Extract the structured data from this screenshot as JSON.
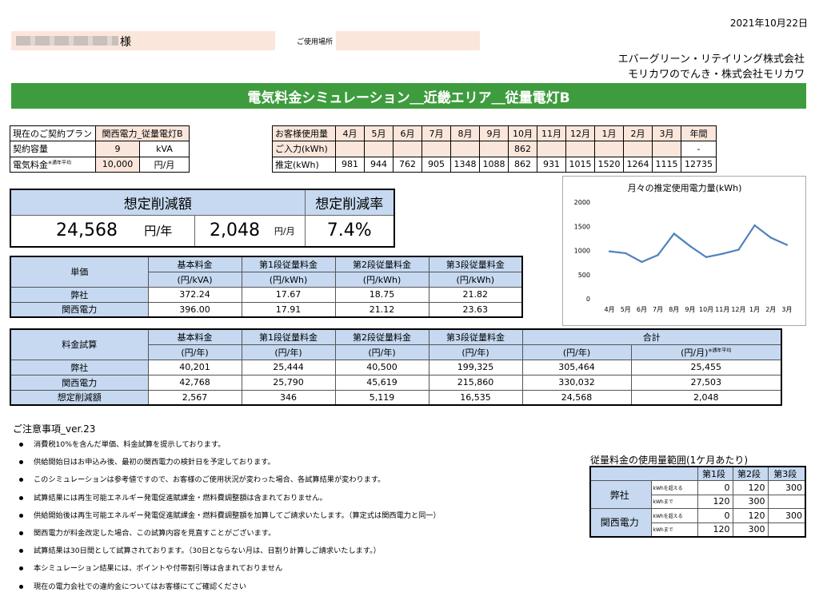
{
  "date": "2021年10月22日",
  "customer": {
    "suffix": "様",
    "place_label": "ご使用場所"
  },
  "company": {
    "line1": "エバーグリーン・リテイリング株式会社",
    "line2": "モリカワのでんき・株式会社モリカワ"
  },
  "title": "電気料金シミュレーション＿近畿エリア＿従量電灯B",
  "plan": {
    "plan_label": "現在のご契約プラン",
    "plan_value": "関西電力_従量電灯B",
    "capacity_label": "契約容量",
    "capacity_value": "9",
    "capacity_unit": "kVA",
    "fee_label": "電気料金",
    "fee_note": "※通年平均",
    "fee_value": "10,000",
    "fee_unit": "円/月"
  },
  "usage": {
    "header_label": "お客様使用量",
    "months": [
      "4月",
      "5月",
      "6月",
      "7月",
      "8月",
      "9月",
      "10月",
      "11月",
      "12月",
      "1月",
      "2月",
      "3月",
      "年間"
    ],
    "input_label": "ご入力(kWh)",
    "input": [
      "",
      "",
      "",
      "",
      "",
      "",
      "862",
      "",
      "",
      "",
      "",
      "",
      "-"
    ],
    "est_label": "推定(kWh)",
    "est": [
      "981",
      "944",
      "762",
      "905",
      "1348",
      "1088",
      "862",
      "931",
      "1015",
      "1520",
      "1264",
      "1115",
      "12735"
    ]
  },
  "saving": {
    "amount_label": "想定削減額",
    "rate_label": "想定削減率",
    "year_value": "24,568",
    "year_unit": "円/年",
    "month_value": "2,048",
    "month_unit": "円/月",
    "rate_value": "7.4%"
  },
  "unit_price": {
    "label": "単価",
    "headers": [
      [
        "基本料金",
        "(円/kVA)"
      ],
      [
        "第1段従量料金",
        "(円/kWh)"
      ],
      [
        "第2段従量料金",
        "(円/kWh)"
      ],
      [
        "第3段従量料金",
        "(円/kWh)"
      ]
    ],
    "rows": [
      {
        "name": "弊社",
        "values": [
          "372.24",
          "17.67",
          "18.75",
          "21.82"
        ]
      },
      {
        "name": "関西電力",
        "values": [
          "396.00",
          "17.91",
          "21.12",
          "23.63"
        ]
      }
    ]
  },
  "calc": {
    "label": "料金試算",
    "headers": [
      [
        "基本料金",
        "(円/年)"
      ],
      [
        "第1段従量料金",
        "(円/年)"
      ],
      [
        "第2段従量料金",
        "(円/年)"
      ],
      [
        "第3段従量料金",
        "(円/年)"
      ]
    ],
    "total_label": "合計",
    "total_year": "(円/年)",
    "total_month": "(円/月)",
    "total_note": "※通年平均",
    "rows": [
      {
        "name": "弊社",
        "values": [
          "40,201",
          "25,444",
          "40,500",
          "199,325",
          "305,464",
          "25,455"
        ]
      },
      {
        "name": "関西電力",
        "values": [
          "42,768",
          "25,790",
          "45,619",
          "215,860",
          "330,032",
          "27,503"
        ]
      },
      {
        "name": "想定削減額",
        "values": [
          "2,567",
          "346",
          "5,119",
          "16,535",
          "24,568",
          "2,048"
        ]
      }
    ]
  },
  "notes": {
    "title": "ご注意事項_ver.23",
    "items": [
      "消費税10%を含んだ単価、料金試算を提示しております。",
      "供給開始日はお申込み後、最初の関西電力の検針日を予定しております。",
      "このシミュレーションは参考値ですので、お客様のご使用状況が変わった場合、各試算結果が変わります。",
      "試算結果には再生可能エネルギー発電促進賦課金・燃料費調整額は含まれておりません。",
      "供給開始後は再生可能エネルギー発電促進賦課金・燃料費調整額を加算してご請求いたします。（算定式は関西電力と同一）",
      "関西電力が料金改定した場合、この試算内容を見直すことがございます。",
      "試算結果は30日間として試算されております。（30日とならない月は、日割り計算しご請求いたします。）",
      "本シミュレーション結果には、ポイントや付帯割引等は含まれておりません",
      "現在の電力会社での違約金についてはお客様にてご確認ください"
    ]
  },
  "chart_data": {
    "type": "line",
    "title": "月々の推定使用電力量(kWh)",
    "categories": [
      "4月",
      "5月",
      "6月",
      "7月",
      "8月",
      "9月",
      "10月",
      "11月",
      "12月",
      "1月",
      "2月",
      "3月"
    ],
    "values": [
      981,
      944,
      762,
      905,
      1348,
      1088,
      862,
      931,
      1015,
      1520,
      1264,
      1115
    ],
    "ylim": [
      0,
      2000
    ],
    "yticks": [
      "0",
      "500",
      "1000",
      "1500",
      "2000"
    ],
    "grid": false,
    "color": "#4f81bd"
  },
  "range": {
    "title": "従量料金の使用量範囲(1ケ月あたり)",
    "headers": [
      "第1段",
      "第2段",
      "第3段"
    ],
    "over_label": "kWhを超える",
    "upto_label": "kWhまで",
    "rows": [
      {
        "name": "弊社",
        "over": [
          "0",
          "120",
          "300"
        ],
        "upto": [
          "120",
          "300",
          ""
        ]
      },
      {
        "name": "関西電力",
        "over": [
          "0",
          "120",
          "300"
        ],
        "upto": [
          "120",
          "300",
          ""
        ]
      }
    ]
  }
}
